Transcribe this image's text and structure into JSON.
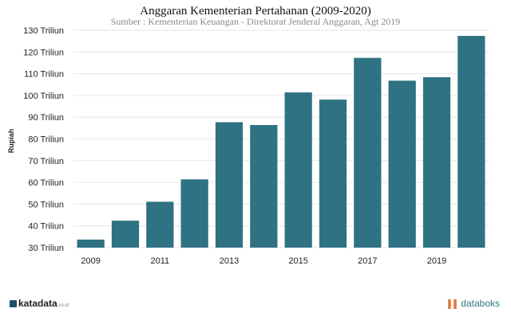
{
  "chart_data": {
    "type": "bar",
    "title": "Anggaran Kementerian Pertahanan (2009-2020)",
    "subtitle": "Sumber : Kementerian Keuangan - Direktorat Jenderal Anggaran, Agt 2019",
    "ylabel": "Rupiah",
    "xlabel": "",
    "categories": [
      "2009",
      "2010",
      "2011",
      "2012",
      "2013",
      "2014",
      "2015",
      "2016",
      "2017",
      "2018",
      "2019",
      "2020"
    ],
    "x_tick_labels": [
      "2009",
      "2011",
      "2013",
      "2015",
      "2017",
      "2019"
    ],
    "values": [
      33.7,
      42.4,
      51.1,
      61.4,
      87.7,
      86.4,
      101.4,
      98.1,
      117.3,
      106.8,
      108.4,
      127.4
    ],
    "ylim": [
      30,
      130
    ],
    "y_ticks": [
      "30 Triliun",
      "40 Triliun",
      "50 Triliun",
      "60 Triliun",
      "70 Triliun",
      "80 Triliun",
      "90 Triliun",
      "100 Triliun",
      "110 Triliun",
      "120 Triliun",
      "130 Triliun"
    ],
    "y_tick_values": [
      30,
      40,
      50,
      60,
      70,
      80,
      90,
      100,
      110,
      120,
      130
    ],
    "grid": true,
    "bar_color": "#2e7283"
  },
  "footer": {
    "left_brand": "katadata",
    "left_sub": ".co.id",
    "right_brand": "databoks"
  }
}
